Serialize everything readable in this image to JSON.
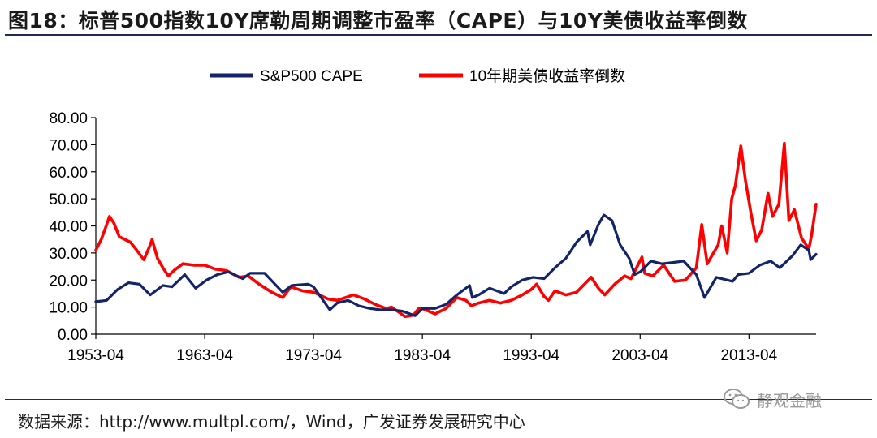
{
  "title": "图18：标普500指数10Y席勒周期调整市盈率（CAPE）与10Y美债收益率倒数",
  "source": "数据来源：http://www.multpl.com/，Wind，广发证券发展研究中心",
  "watermark": "静观金融",
  "colors": {
    "cape": "#13246b",
    "inv_yield": "#ff0000",
    "rule": "#1f2a5a"
  },
  "chart_data": {
    "type": "line",
    "title": "",
    "xlabel": "",
    "ylabel": "",
    "x_start": "1953-04",
    "x_end": "2019-06",
    "x_ticks": [
      "1953-04",
      "1963-04",
      "1973-04",
      "1983-04",
      "1993-04",
      "2003-04",
      "2013-04"
    ],
    "y_ticks": [
      "0.00",
      "10.00",
      "20.00",
      "30.00",
      "40.00",
      "50.00",
      "60.00",
      "70.00",
      "80.00"
    ],
    "ylim": [
      0,
      80
    ],
    "legend_position": "top-center",
    "series": [
      {
        "name": "S&P500 CAPE",
        "color": "#13246b",
        "points": [
          [
            "1953-04",
            12.0
          ],
          [
            "1954-04",
            12.5
          ],
          [
            "1955-04",
            16.5
          ],
          [
            "1956-04",
            19.0
          ],
          [
            "1957-04",
            18.5
          ],
          [
            "1958-04",
            14.5
          ],
          [
            "1959-06",
            18.0
          ],
          [
            "1960-04",
            17.5
          ],
          [
            "1961-06",
            22.0
          ],
          [
            "1962-06",
            17.0
          ],
          [
            "1963-06",
            20.0
          ],
          [
            "1964-06",
            22.0
          ],
          [
            "1965-06",
            23.0
          ],
          [
            "1966-10",
            20.5
          ],
          [
            "1967-06",
            22.5
          ],
          [
            "1968-10",
            22.5
          ],
          [
            "1970-06",
            15.5
          ],
          [
            "1971-04",
            18.0
          ],
          [
            "1972-10",
            18.5
          ],
          [
            "1973-04",
            17.5
          ],
          [
            "1974-10",
            9.0
          ],
          [
            "1975-06",
            11.5
          ],
          [
            "1976-06",
            12.5
          ],
          [
            "1977-06",
            10.5
          ],
          [
            "1978-06",
            9.5
          ],
          [
            "1979-06",
            9.0
          ],
          [
            "1980-06",
            9.0
          ],
          [
            "1981-06",
            8.5
          ],
          [
            "1982-08",
            6.8
          ],
          [
            "1983-04",
            9.5
          ],
          [
            "1984-06",
            9.5
          ],
          [
            "1985-06",
            11.0
          ],
          [
            "1986-06",
            14.5
          ],
          [
            "1987-08",
            18.0
          ],
          [
            "1987-11",
            13.5
          ],
          [
            "1988-06",
            14.5
          ],
          [
            "1989-06",
            17.0
          ],
          [
            "1990-10",
            15.0
          ],
          [
            "1991-06",
            17.5
          ],
          [
            "1992-06",
            20.0
          ],
          [
            "1993-06",
            21.0
          ],
          [
            "1994-06",
            20.5
          ],
          [
            "1995-06",
            24.5
          ],
          [
            "1996-06",
            28.0
          ],
          [
            "1997-06",
            34.0
          ],
          [
            "1998-06",
            38.0
          ],
          [
            "1998-09",
            33.0
          ],
          [
            "1999-06",
            40.5
          ],
          [
            "1999-12",
            44.0
          ],
          [
            "2000-09",
            42.0
          ],
          [
            "2001-06",
            33.0
          ],
          [
            "2002-04",
            28.0
          ],
          [
            "2002-10",
            22.0
          ],
          [
            "2003-04",
            23.0
          ],
          [
            "2004-04",
            27.0
          ],
          [
            "2005-04",
            26.0
          ],
          [
            "2006-04",
            26.5
          ],
          [
            "2007-04",
            27.0
          ],
          [
            "2008-06",
            22.0
          ],
          [
            "2009-03",
            13.5
          ],
          [
            "2010-04",
            21.0
          ],
          [
            "2011-10",
            19.5
          ],
          [
            "2012-04",
            22.0
          ],
          [
            "2013-04",
            22.5
          ],
          [
            "2014-04",
            25.5
          ],
          [
            "2015-04",
            27.0
          ],
          [
            "2016-02",
            24.5
          ],
          [
            "2017-04",
            29.0
          ],
          [
            "2018-01",
            33.0
          ],
          [
            "2018-10",
            31.0
          ],
          [
            "2018-12",
            27.5
          ],
          [
            "2019-06",
            29.5
          ]
        ]
      },
      {
        "name": "10年期美债收益率倒数",
        "color": "#ff0000",
        "points": [
          [
            "1953-04",
            31.0
          ],
          [
            "1953-10",
            35.0
          ],
          [
            "1954-04",
            40.5
          ],
          [
            "1954-07",
            43.5
          ],
          [
            "1954-12",
            41.0
          ],
          [
            "1955-06",
            36.0
          ],
          [
            "1956-06",
            34.0
          ],
          [
            "1956-12",
            31.5
          ],
          [
            "1957-09",
            27.5
          ],
          [
            "1958-04",
            33.0
          ],
          [
            "1958-06",
            35.0
          ],
          [
            "1958-12",
            28.0
          ],
          [
            "1959-06",
            24.5
          ],
          [
            "1959-12",
            21.5
          ],
          [
            "1960-06",
            23.5
          ],
          [
            "1961-04",
            26.0
          ],
          [
            "1962-04",
            25.5
          ],
          [
            "1963-04",
            25.5
          ],
          [
            "1964-04",
            24.0
          ],
          [
            "1965-04",
            23.5
          ],
          [
            "1966-06",
            21.0
          ],
          [
            "1967-04",
            21.5
          ],
          [
            "1968-04",
            18.5
          ],
          [
            "1969-06",
            15.5
          ],
          [
            "1970-06",
            13.5
          ],
          [
            "1971-03",
            17.5
          ],
          [
            "1972-04",
            16.0
          ],
          [
            "1973-04",
            15.5
          ],
          [
            "1974-08",
            13.0
          ],
          [
            "1975-06",
            12.5
          ],
          [
            "1976-12",
            14.5
          ],
          [
            "1977-12",
            13.0
          ],
          [
            "1978-12",
            11.0
          ],
          [
            "1979-12",
            9.5
          ],
          [
            "1980-06",
            10.0
          ],
          [
            "1981-09",
            6.5
          ],
          [
            "1982-06",
            7.0
          ],
          [
            "1982-12",
            9.5
          ],
          [
            "1983-04",
            9.5
          ],
          [
            "1984-06",
            7.5
          ],
          [
            "1985-06",
            9.5
          ],
          [
            "1986-06",
            13.5
          ],
          [
            "1987-04",
            12.5
          ],
          [
            "1987-10",
            10.5
          ],
          [
            "1988-06",
            11.5
          ],
          [
            "1989-06",
            12.5
          ],
          [
            "1990-06",
            11.5
          ],
          [
            "1991-06",
            12.5
          ],
          [
            "1992-06",
            14.5
          ],
          [
            "1993-04",
            16.5
          ],
          [
            "1993-10",
            18.5
          ],
          [
            "1994-06",
            14.0
          ],
          [
            "1994-11",
            12.5
          ],
          [
            "1995-06",
            16.0
          ],
          [
            "1996-06",
            14.5
          ],
          [
            "1997-06",
            15.5
          ],
          [
            "1998-10",
            21.0
          ],
          [
            "1999-06",
            17.0
          ],
          [
            "2000-01",
            14.5
          ],
          [
            "2000-12",
            18.5
          ],
          [
            "2001-11",
            21.5
          ],
          [
            "2002-06",
            20.5
          ],
          [
            "2003-06",
            28.5
          ],
          [
            "2003-09",
            22.5
          ],
          [
            "2004-06",
            21.5
          ],
          [
            "2005-06",
            25.5
          ],
          [
            "2006-06",
            19.5
          ],
          [
            "2007-06",
            20.0
          ],
          [
            "2008-06",
            24.5
          ],
          [
            "2008-12",
            40.5
          ],
          [
            "2009-06",
            26.0
          ],
          [
            "2010-06",
            33.0
          ],
          [
            "2010-10",
            40.0
          ],
          [
            "2011-04",
            30.0
          ],
          [
            "2011-09",
            50.0
          ],
          [
            "2012-01",
            55.0
          ],
          [
            "2012-07",
            69.5
          ],
          [
            "2012-12",
            57.0
          ],
          [
            "2013-06",
            45.0
          ],
          [
            "2013-12",
            34.5
          ],
          [
            "2014-06",
            38.5
          ],
          [
            "2015-01",
            52.0
          ],
          [
            "2015-06",
            43.5
          ],
          [
            "2016-01",
            48.0
          ],
          [
            "2016-07",
            70.5
          ],
          [
            "2016-12",
            42.0
          ],
          [
            "2017-06",
            46.0
          ],
          [
            "2018-02",
            35.5
          ],
          [
            "2018-10",
            31.5
          ],
          [
            "2019-01",
            36.5
          ],
          [
            "2019-06",
            48.0
          ]
        ]
      }
    ]
  }
}
